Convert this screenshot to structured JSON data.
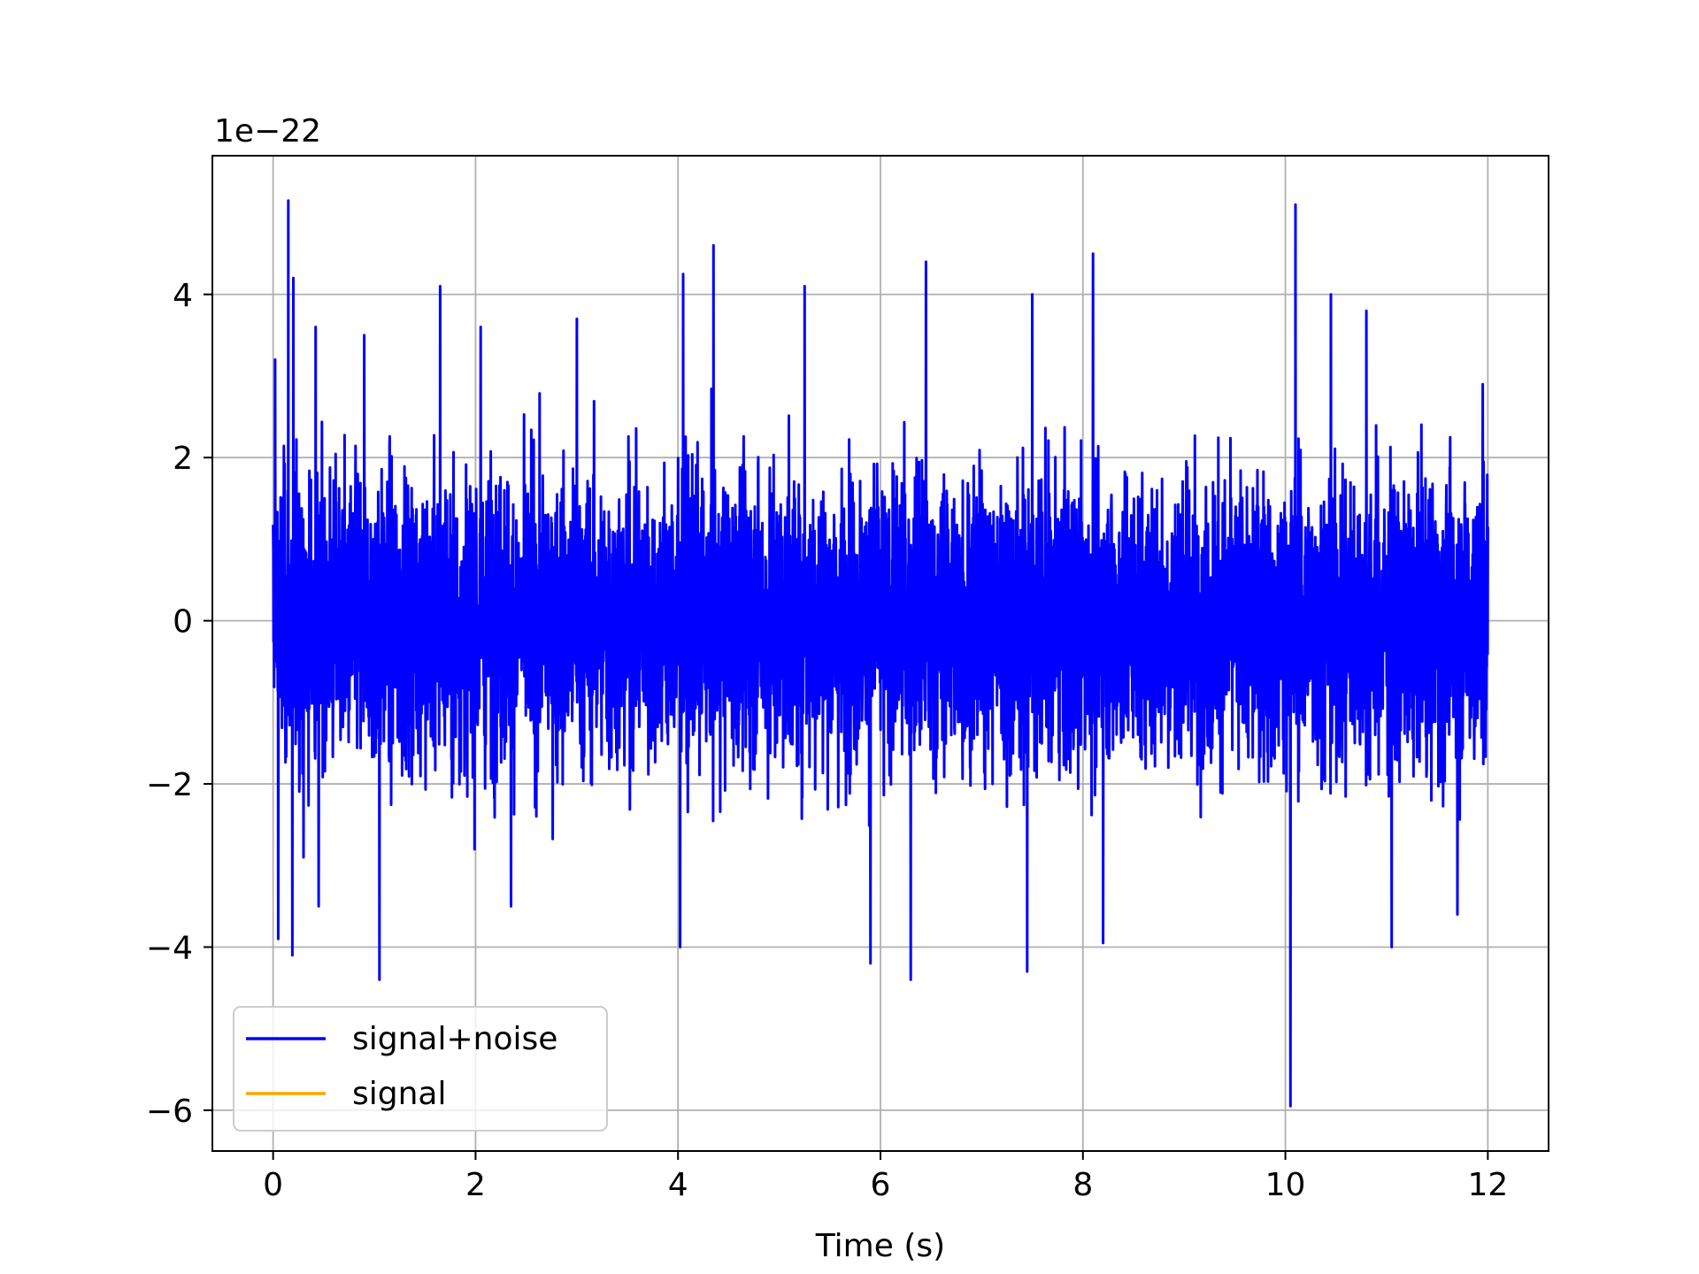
{
  "chart_data": {
    "type": "line",
    "title": "",
    "xlabel": "Time (s)",
    "ylabel": "",
    "y_offset_label": "1e−22",
    "xlim": [
      -0.6,
      12.6
    ],
    "ylim": [
      -6.5,
      5.7
    ],
    "xticks": [
      0,
      2,
      4,
      6,
      8,
      10,
      12
    ],
    "xtick_labels": [
      "0",
      "2",
      "4",
      "6",
      "8",
      "10",
      "12"
    ],
    "yticks": [
      -6,
      -4,
      -2,
      0,
      2,
      4
    ],
    "ytick_labels": [
      "−6",
      "−4",
      "−2",
      "0",
      "2",
      "4"
    ],
    "grid": true,
    "legend_position": "lower-left",
    "series": [
      {
        "name": "signal+noise",
        "color": "#0000ff",
        "x_range": [
          0,
          12
        ],
        "approx_stddev": 1.0,
        "peaks": [
          [
            0.02,
            3.2
          ],
          [
            0.05,
            -3.9
          ],
          [
            0.15,
            5.15
          ],
          [
            0.19,
            -4.1
          ],
          [
            0.2,
            4.2
          ],
          [
            0.3,
            -2.9
          ],
          [
            0.42,
            3.6
          ],
          [
            0.45,
            -3.5
          ],
          [
            0.9,
            3.5
          ],
          [
            1.05,
            -4.4
          ],
          [
            1.65,
            4.1
          ],
          [
            2.05,
            3.6
          ],
          [
            2.35,
            -3.5
          ],
          [
            3.0,
            3.7
          ],
          [
            4.05,
            4.25
          ],
          [
            4.35,
            4.6
          ],
          [
            4.02,
            -4.0
          ],
          [
            5.25,
            4.1
          ],
          [
            5.9,
            -4.2
          ],
          [
            6.3,
            -4.4
          ],
          [
            6.45,
            4.4
          ],
          [
            7.45,
            -4.3
          ],
          [
            7.5,
            4.0
          ],
          [
            8.1,
            4.5
          ],
          [
            8.2,
            -3.95
          ],
          [
            10.1,
            5.1
          ],
          [
            10.05,
            -5.95
          ],
          [
            10.45,
            4.0
          ],
          [
            10.8,
            3.8
          ],
          [
            11.05,
            -4.0
          ],
          [
            11.7,
            -3.6
          ],
          [
            11.95,
            2.9
          ]
        ]
      },
      {
        "name": "signal",
        "color": "#ffa500",
        "x_range": [
          0,
          12
        ],
        "values": "0"
      }
    ]
  }
}
